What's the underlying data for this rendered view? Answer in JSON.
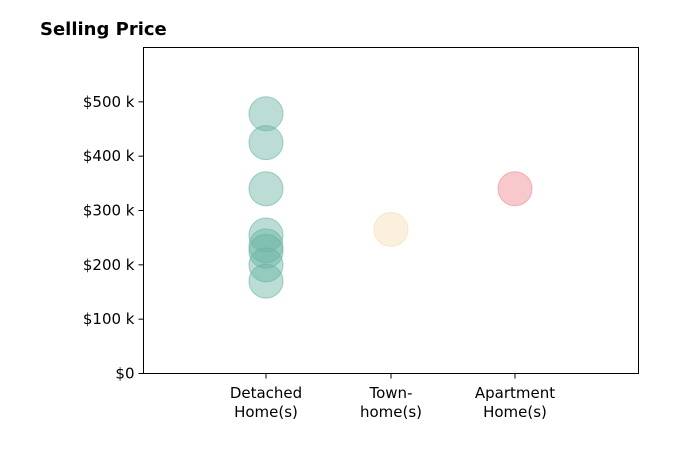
{
  "chart_data": {
    "type": "scatter",
    "title": "Selling Price",
    "xlabel": "",
    "ylabel": "",
    "ylim": [
      0,
      600000
    ],
    "y_ticks": [
      0,
      100000,
      200000,
      300000,
      400000,
      500000
    ],
    "y_tick_labels": [
      "$0",
      "$100 k",
      "$200 k",
      "$300 k",
      "$400 k",
      "$500 k"
    ],
    "categories": [
      {
        "label_lines": [
          "Detached",
          "Home(s)"
        ]
      },
      {
        "label_lines": [
          "Town-",
          "home(s)"
        ]
      },
      {
        "label_lines": [
          "Apartment",
          "Home(s)"
        ]
      }
    ],
    "grid": false,
    "legend": "none",
    "series": [
      {
        "category_index": 0,
        "color": "#69b3a2",
        "values": [
          478000,
          425000,
          340000,
          255000,
          235000,
          225000,
          200000,
          170000
        ]
      },
      {
        "category_index": 1,
        "color": "#f5deb3",
        "values": [
          265000
        ]
      },
      {
        "category_index": 2,
        "color": "#ee8890",
        "values": [
          340000
        ]
      }
    ]
  }
}
